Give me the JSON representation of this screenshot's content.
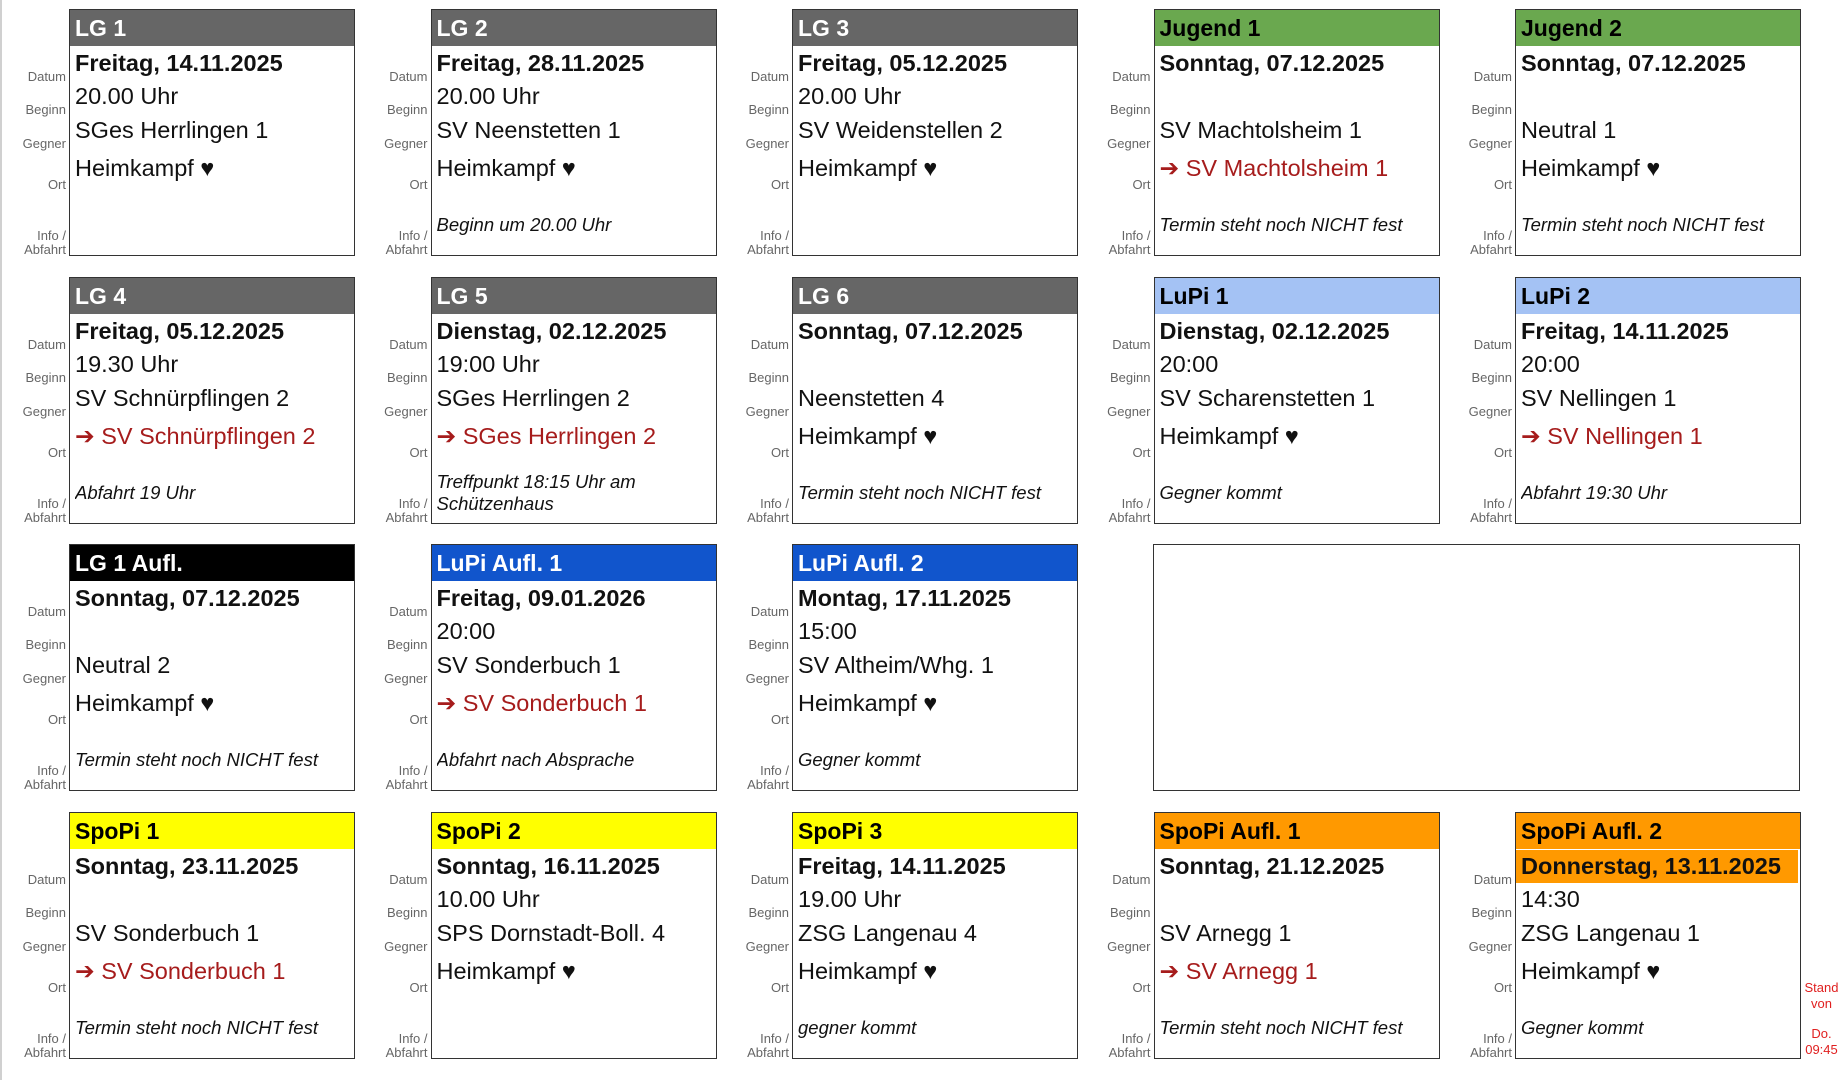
{
  "labels": {
    "date": "Datum",
    "begin": "Beginn",
    "opponent": "Gegner",
    "location": "Ort",
    "info_1": "Info /",
    "info_2": "Abfahrt"
  },
  "colors": {
    "gray": "#666666",
    "green": "#6aa84f",
    "lightblue": "#a4c2f4",
    "black": "#000000",
    "blue": "#1155cc",
    "yellow": "#ffff00",
    "orange": "#ff9900",
    "away_text": "#a61c1c"
  },
  "home_label": "Heimkampf ♥",
  "away_prefix": "➔",
  "cards": [
    {
      "title": "LG 1",
      "bg": "#666666",
      "fg": "#ffffff",
      "date": "Freitag, 14.11.2025",
      "begin": "20.00 Uhr",
      "opponent": "SGes Herrlingen 1",
      "location": "Heimkampf ♥",
      "away": false,
      "info": ""
    },
    {
      "title": "LG 2",
      "bg": "#666666",
      "fg": "#ffffff",
      "date": "Freitag, 28.11.2025",
      "begin": "20.00 Uhr",
      "opponent": "SV Neenstetten 1",
      "location": "Heimkampf ♥",
      "away": false,
      "info": "Beginn um 20.00 Uhr"
    },
    {
      "title": "LG 3",
      "bg": "#666666",
      "fg": "#ffffff",
      "date": "Freitag, 05.12.2025",
      "begin": "20.00 Uhr",
      "opponent": "SV Weidenstellen 2",
      "location": "Heimkampf ♥",
      "away": false,
      "info": ""
    },
    {
      "title": "Jugend 1",
      "bg": "#6aa84f",
      "fg": "#000000",
      "date": "Sonntag, 07.12.2025",
      "begin": "",
      "opponent": "SV Machtolsheim 1",
      "location": "➔ SV Machtolsheim 1",
      "away": true,
      "info": "Termin steht noch NICHT fest"
    },
    {
      "title": "Jugend 2",
      "bg": "#6aa84f",
      "fg": "#000000",
      "date": "Sonntag, 07.12.2025",
      "begin": "",
      "opponent": "Neutral 1",
      "location": "Heimkampf ♥",
      "away": false,
      "info": "Termin steht noch NICHT fest"
    },
    {
      "title": "LG 4",
      "bg": "#666666",
      "fg": "#ffffff",
      "date": "Freitag, 05.12.2025",
      "begin": "19.30 Uhr",
      "opponent": "SV Schnürpflingen 2",
      "location": "➔ SV Schnürpflingen 2",
      "away": true,
      "info": "Abfahrt 19 Uhr"
    },
    {
      "title": "LG 5",
      "bg": "#666666",
      "fg": "#ffffff",
      "date": "Dienstag, 02.12.2025",
      "begin": "19:00 Uhr",
      "opponent": "SGes Herrlingen 2",
      "location": "➔ SGes Herrlingen 2",
      "away": true,
      "info": "Treffpunkt 18:15 Uhr am Schützenhaus"
    },
    {
      "title": "LG 6",
      "bg": "#666666",
      "fg": "#ffffff",
      "date": "Sonntag, 07.12.2025",
      "begin": "",
      "opponent": "Neenstetten 4",
      "location": "Heimkampf ♥",
      "away": false,
      "info": "Termin steht noch NICHT fest"
    },
    {
      "title": "LuPi 1",
      "bg": "#a4c2f4",
      "fg": "#000000",
      "date": "Dienstag, 02.12.2025",
      "begin": "20:00",
      "opponent": "SV Scharenstetten 1",
      "location": "Heimkampf ♥",
      "away": false,
      "info": "Gegner kommt"
    },
    {
      "title": "LuPi 2",
      "bg": "#a4c2f4",
      "fg": "#000000",
      "date": "Freitag, 14.11.2025",
      "begin": "20:00",
      "opponent": "SV Nellingen 1",
      "location": "➔ SV Nellingen 1",
      "away": true,
      "info": "Abfahrt 19:30 Uhr"
    },
    {
      "title": "LG 1 Aufl.",
      "bg": "#000000",
      "fg": "#ffffff",
      "date": "Sonntag, 07.12.2025",
      "begin": "",
      "opponent": "Neutral 2",
      "location": "Heimkampf ♥",
      "away": false,
      "info": "Termin steht noch NICHT fest"
    },
    {
      "title": "LuPi Aufl. 1",
      "bg": "#1155cc",
      "fg": "#ffffff",
      "date": "Freitag, 09.01.2026",
      "begin": "20:00",
      "opponent": "SV Sonderbuch 1",
      "location": "➔ SV Sonderbuch 1",
      "away": true,
      "info": "Abfahrt nach Absprache"
    },
    {
      "title": "LuPi Aufl. 2",
      "bg": "#1155cc",
      "fg": "#ffffff",
      "date": "Montag, 17.11.2025",
      "begin": "15:00",
      "opponent": "SV Altheim/Whg. 1",
      "location": "Heimkampf ♥",
      "away": false,
      "info": "Gegner kommt"
    },
    null,
    null,
    {
      "title": "SpoPi 1",
      "bg": "#ffff00",
      "fg": "#000000",
      "date": "Sonntag, 23.11.2025",
      "begin": "",
      "opponent": "SV Sonderbuch 1",
      "location": "➔ SV Sonderbuch 1",
      "away": true,
      "info": "Termin steht noch NICHT fest"
    },
    {
      "title": "SpoPi 2",
      "bg": "#ffff00",
      "fg": "#000000",
      "date": "Sonntag, 16.11.2025",
      "begin": "10.00 Uhr",
      "opponent": "SPS Dornstadt-Boll. 4",
      "location": "Heimkampf ♥",
      "away": false,
      "info": ""
    },
    {
      "title": "SpoPi 3",
      "bg": "#ffff00",
      "fg": "#000000",
      "date": "Freitag, 14.11.2025",
      "begin": "19.00 Uhr",
      "opponent": "ZSG Langenau 4",
      "location": "Heimkampf ♥",
      "away": false,
      "info": "gegner kommt"
    },
    {
      "title": "SpoPi Aufl. 1",
      "bg": "#ff9900",
      "fg": "#000000",
      "date": "Sonntag, 21.12.2025",
      "begin": "",
      "opponent": "SV Arnegg 1",
      "location": "➔ SV Arnegg 1",
      "away": true,
      "info": "Termin steht noch NICHT fest"
    },
    {
      "title": "SpoPi Aufl. 2",
      "bg": "#ff9900",
      "fg": "#000000",
      "date": "Donnerstag, 13.11.2025",
      "date_bg": "#ff9900",
      "begin": "14:30",
      "opponent": "ZSG Langenau 1",
      "location": "Heimkampf ♥",
      "away": false,
      "info": "Gegner kommt"
    }
  ],
  "stand": {
    "line1": "Stand",
    "line2": "von",
    "line3": "Do.",
    "line4": "09:45"
  }
}
